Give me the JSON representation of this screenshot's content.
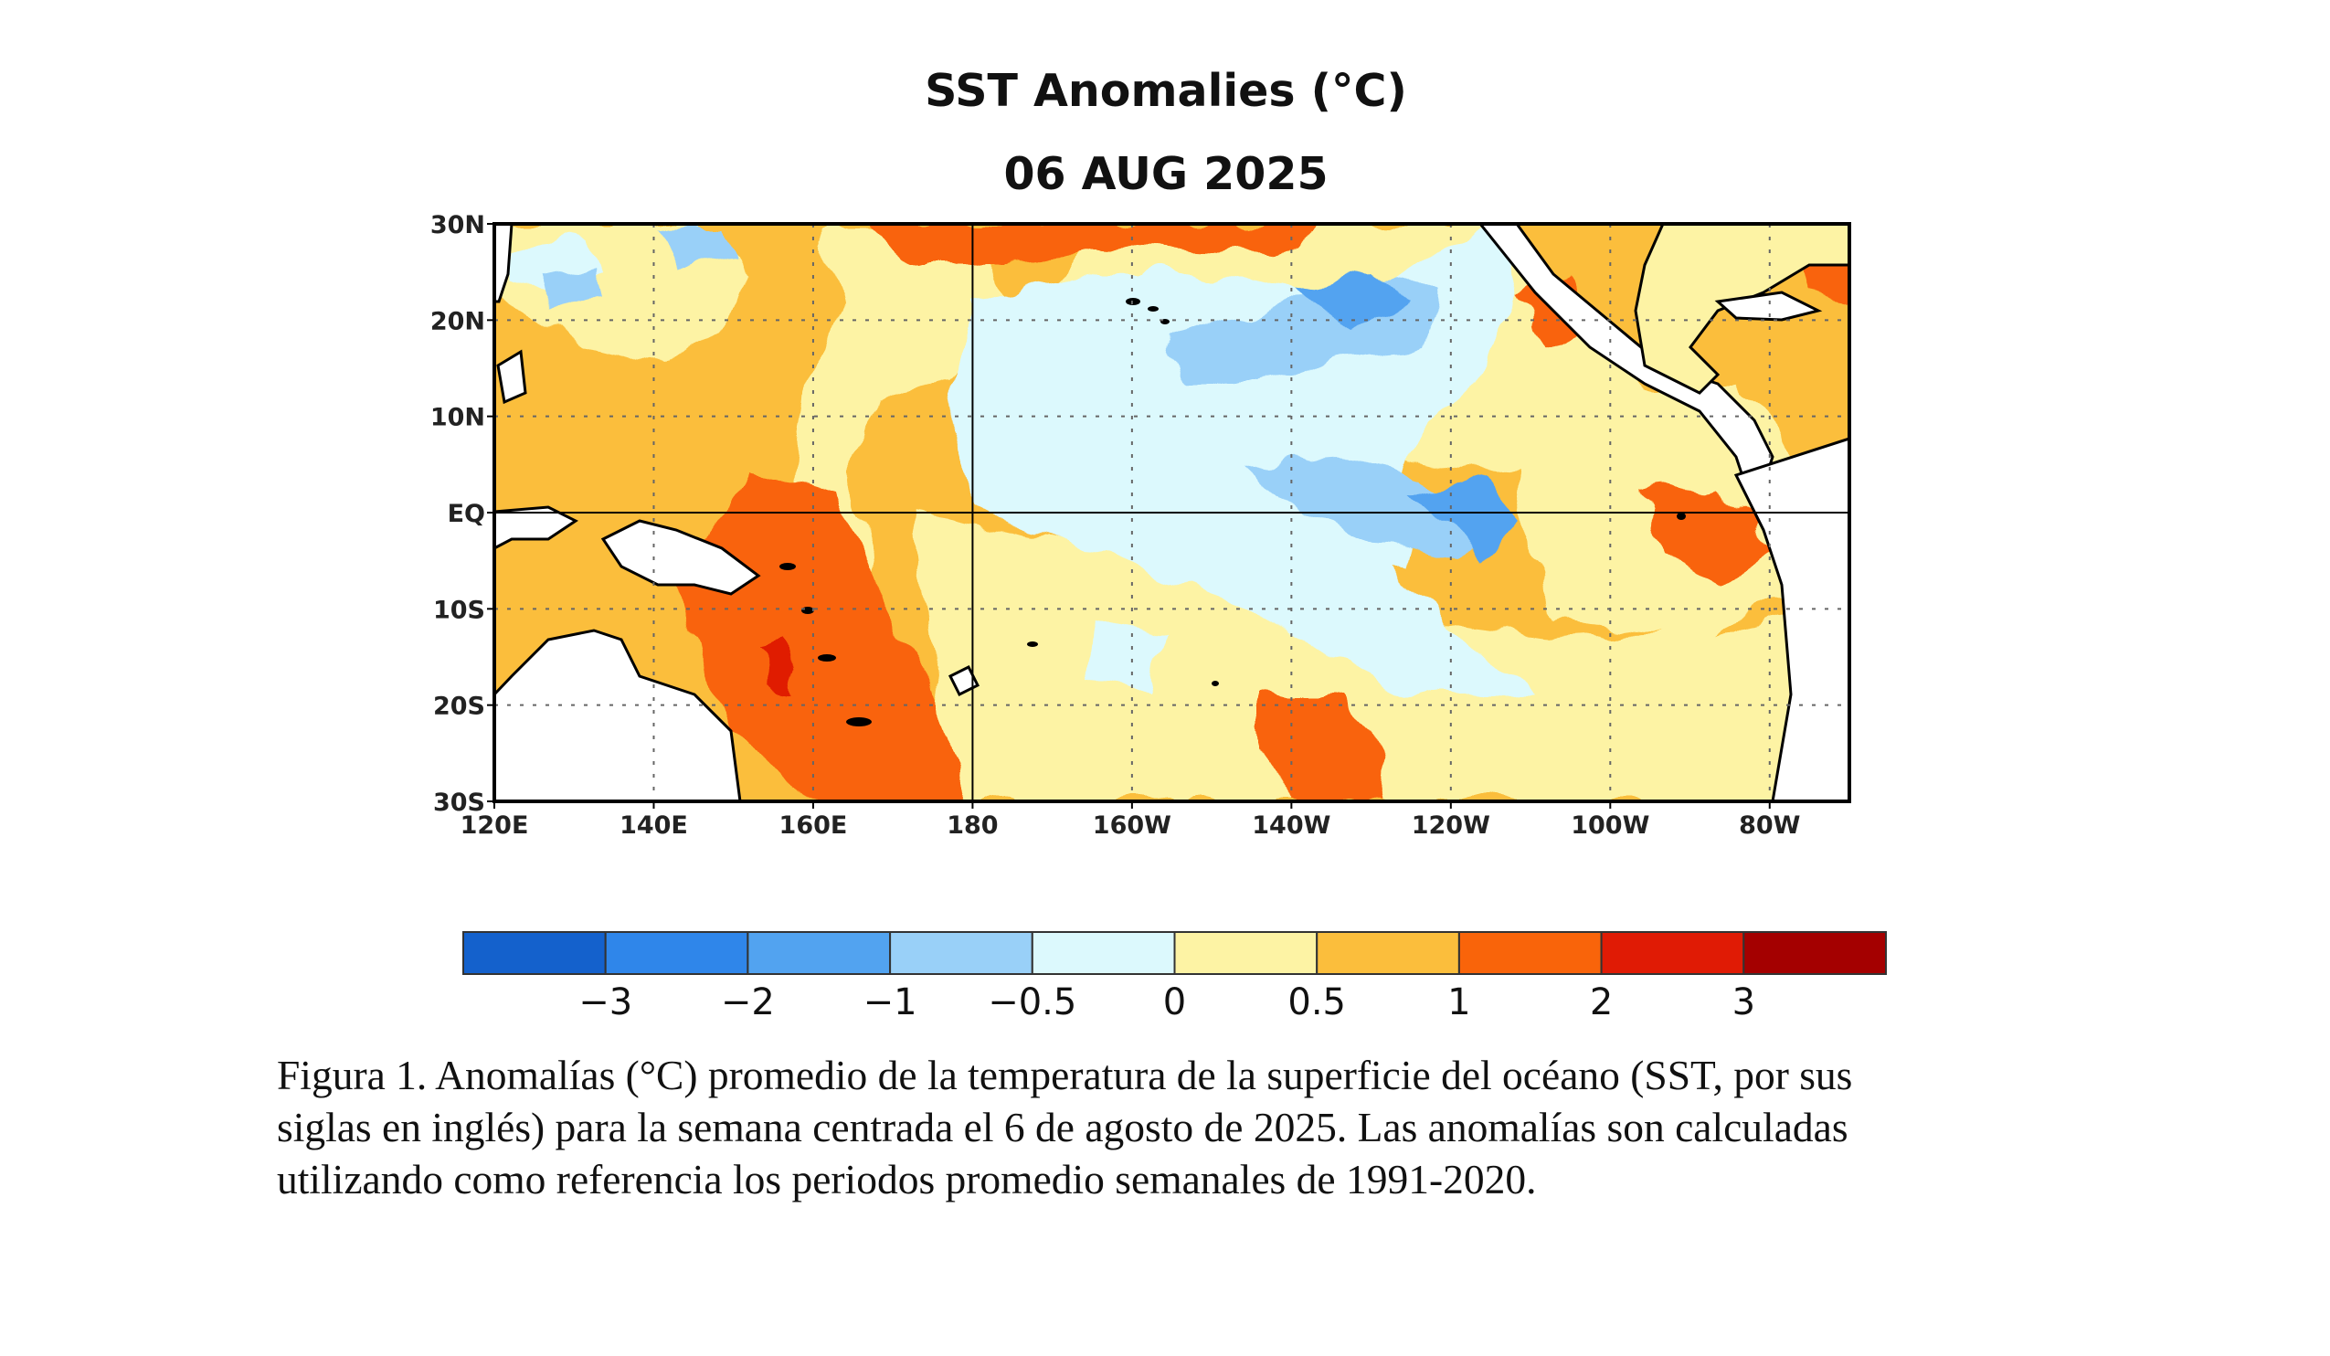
{
  "map": {
    "title": "SST Anomalies (°C)",
    "date": "06 AUG 2025",
    "lat_labels": [
      "30N",
      "20N",
      "10N",
      "EQ",
      "10S",
      "20S",
      "30S"
    ],
    "lon_labels": [
      "120E",
      "140E",
      "160E",
      "180",
      "160W",
      "140W",
      "120W",
      "100W",
      "80W"
    ],
    "extent": {
      "lon_min": 120,
      "lon_max": 290,
      "lat_min": -30,
      "lat_max": 30
    },
    "grid": "dotted",
    "zero_lines": [
      "EQ",
      "180"
    ]
  },
  "colorbar": {
    "colors": [
      "#1461cc",
      "#2f86ea",
      "#52a3f0",
      "#99d0f8",
      "#dcf9fd",
      "#fdf3a4",
      "#fbbe3c",
      "#f9640a",
      "#e01b05",
      "#a40000"
    ],
    "labels": [
      "−3",
      "−2",
      "−1",
      "−0.5",
      "0",
      "0.5",
      "1",
      "2",
      "3"
    ]
  },
  "caption": {
    "lines": [
      "Figura 1. Anomalías (°C) promedio de la temperatura de la superficie del océano (SST, por sus",
      "siglas en inglés) para la semana centrada el 6 de agosto de 2025. Las anomalías son calculadas",
      "utilizando como referencia los periodos promedio semanales de 1991-2020."
    ]
  }
}
